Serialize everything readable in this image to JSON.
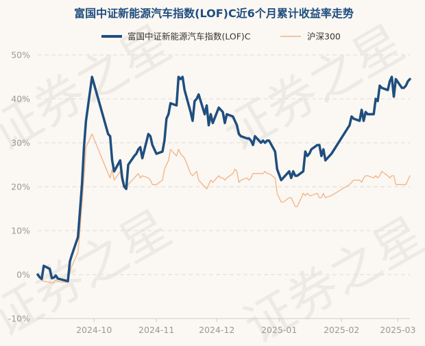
{
  "chart_data": {
    "type": "line",
    "title": "富国中证新能源汽车指数(LOF)C近6个月累计收益率走势",
    "watermark": "证券之星",
    "y_unit": "%",
    "ylim": [
      -10,
      50
    ],
    "yticks": [
      -10,
      0,
      10,
      20,
      30,
      40,
      50
    ],
    "ytick_labels": [
      "-10%",
      "0%",
      "10%",
      "20%",
      "30%",
      "40%",
      "50%"
    ],
    "x_range": [
      "2024-09-03",
      "2025-03-07"
    ],
    "xticks": [
      "2024-10-01",
      "2024-11-01",
      "2024-12-01",
      "2025-01-01",
      "2025-02-01",
      "2025-03-01"
    ],
    "xtick_labels": [
      "2024-10",
      "2024-11",
      "2024-12",
      "2025-01",
      "2025-02",
      "2025-03"
    ],
    "grid": true,
    "legend_position": "top-center",
    "colors": {
      "fund": "#1f4e7f",
      "index": "#f0b385",
      "title": "#1f4e7f",
      "axis_text": "#999999",
      "grid": "#dddddd"
    },
    "series": [
      {
        "name": "富国中证新能源汽车指数(LOF)C",
        "points": [
          [
            "2024-09-03",
            0.0
          ],
          [
            "2024-09-04",
            -0.6
          ],
          [
            "2024-09-05",
            -1.0
          ],
          [
            "2024-09-06",
            2.0
          ],
          [
            "2024-09-09",
            1.3
          ],
          [
            "2024-09-10",
            -0.8
          ],
          [
            "2024-09-11",
            -0.7
          ],
          [
            "2024-09-12",
            -0.2
          ],
          [
            "2024-09-13",
            -0.9
          ],
          [
            "2024-09-18",
            -1.5
          ],
          [
            "2024-09-19",
            3.0
          ],
          [
            "2024-09-20",
            4.5
          ],
          [
            "2024-09-23",
            8.5
          ],
          [
            "2024-09-24",
            14.5
          ],
          [
            "2024-09-25",
            20.5
          ],
          [
            "2024-09-26",
            29.0
          ],
          [
            "2024-09-27",
            35.0
          ],
          [
            "2024-09-30",
            45.0
          ],
          [
            "2024-10-08",
            32.0
          ],
          [
            "2024-10-09",
            31.5
          ],
          [
            "2024-10-10",
            26.0
          ],
          [
            "2024-10-11",
            23.5
          ],
          [
            "2024-10-14",
            26.0
          ],
          [
            "2024-10-15",
            22.0
          ],
          [
            "2024-10-16",
            20.0
          ],
          [
            "2024-10-17",
            19.5
          ],
          [
            "2024-10-18",
            25.0
          ],
          [
            "2024-10-21",
            27.0
          ],
          [
            "2024-10-22",
            27.5
          ],
          [
            "2024-10-23",
            28.5
          ],
          [
            "2024-10-24",
            29.0
          ],
          [
            "2024-10-25",
            26.5
          ],
          [
            "2024-10-28",
            32.0
          ],
          [
            "2024-10-29",
            31.5
          ],
          [
            "2024-10-30",
            29.5
          ],
          [
            "2024-10-31",
            28.5
          ],
          [
            "2024-11-01",
            27.5
          ],
          [
            "2024-11-04",
            28.0
          ],
          [
            "2024-11-05",
            30.5
          ],
          [
            "2024-11-06",
            35.5
          ],
          [
            "2024-11-07",
            36.5
          ],
          [
            "2024-11-08",
            39.0
          ],
          [
            "2024-11-11",
            38.5
          ],
          [
            "2024-11-12",
            45.0
          ],
          [
            "2024-11-13",
            44.5
          ],
          [
            "2024-11-14",
            45.0
          ],
          [
            "2024-11-15",
            42.0
          ],
          [
            "2024-11-18",
            37.0
          ],
          [
            "2024-11-19",
            35.0
          ],
          [
            "2024-11-20",
            39.5
          ],
          [
            "2024-11-21",
            40.0
          ],
          [
            "2024-11-22",
            41.0
          ],
          [
            "2024-11-25",
            36.5
          ],
          [
            "2024-11-26",
            38.5
          ],
          [
            "2024-11-27",
            34.0
          ],
          [
            "2024-11-28",
            36.5
          ],
          [
            "2024-11-29",
            34.5
          ],
          [
            "2024-12-02",
            38.0
          ],
          [
            "2024-12-03",
            37.5
          ],
          [
            "2024-12-04",
            37.0
          ],
          [
            "2024-12-05",
            34.5
          ],
          [
            "2024-12-06",
            36.5
          ],
          [
            "2024-12-09",
            36.0
          ],
          [
            "2024-12-10",
            35.0
          ],
          [
            "2024-12-11",
            34.0
          ],
          [
            "2024-12-12",
            32.0
          ],
          [
            "2024-12-13",
            31.5
          ],
          [
            "2024-12-16",
            31.0
          ],
          [
            "2024-12-17",
            31.0
          ],
          [
            "2024-12-18",
            30.5
          ],
          [
            "2024-12-19",
            29.5
          ],
          [
            "2024-12-20",
            31.5
          ],
          [
            "2024-12-23",
            30.0
          ],
          [
            "2024-12-24",
            30.5
          ],
          [
            "2024-12-25",
            30.0
          ],
          [
            "2024-12-26",
            30.5
          ],
          [
            "2024-12-27",
            30.5
          ],
          [
            "2024-12-30",
            28.0
          ],
          [
            "2024-12-31",
            24.0
          ],
          [
            "2025-01-02",
            21.5
          ],
          [
            "2025-01-03",
            22.0
          ],
          [
            "2025-01-06",
            23.5
          ],
          [
            "2025-01-07",
            22.0
          ],
          [
            "2025-01-08",
            23.5
          ],
          [
            "2025-01-09",
            22.5
          ],
          [
            "2025-01-10",
            22.5
          ],
          [
            "2025-01-13",
            23.5
          ],
          [
            "2025-01-14",
            28.0
          ],
          [
            "2025-01-15",
            27.0
          ],
          [
            "2025-01-16",
            27.5
          ],
          [
            "2025-01-17",
            28.5
          ],
          [
            "2025-01-20",
            29.5
          ],
          [
            "2025-01-21",
            29.5
          ],
          [
            "2025-01-22",
            27.0
          ],
          [
            "2025-01-23",
            28.5
          ],
          [
            "2025-01-24",
            26.0
          ],
          [
            "2025-01-27",
            27.5
          ],
          [
            "2025-02-05",
            34.0
          ],
          [
            "2025-02-06",
            36.0
          ],
          [
            "2025-02-07",
            35.5
          ],
          [
            "2025-02-10",
            35.0
          ],
          [
            "2025-02-11",
            37.5
          ],
          [
            "2025-02-12",
            35.0
          ],
          [
            "2025-02-13",
            37.0
          ],
          [
            "2025-02-14",
            36.5
          ],
          [
            "2025-02-17",
            36.5
          ],
          [
            "2025-02-18",
            40.0
          ],
          [
            "2025-02-19",
            39.5
          ],
          [
            "2025-02-20",
            43.0
          ],
          [
            "2025-02-21",
            42.5
          ],
          [
            "2025-02-24",
            42.0
          ],
          [
            "2025-02-25",
            44.0
          ],
          [
            "2025-02-26",
            45.0
          ],
          [
            "2025-02-27",
            40.5
          ],
          [
            "2025-02-28",
            44.5
          ],
          [
            "2025-03-03",
            42.5
          ],
          [
            "2025-03-04",
            42.5
          ],
          [
            "2025-03-05",
            43.0
          ],
          [
            "2025-03-06",
            44.0
          ],
          [
            "2025-03-07",
            44.5
          ]
        ]
      },
      {
        "name": "沪深300",
        "points": [
          [
            "2024-09-03",
            0.0
          ],
          [
            "2024-09-04",
            -0.8
          ],
          [
            "2024-09-05",
            -1.3
          ],
          [
            "2024-09-06",
            -1.5
          ],
          [
            "2024-09-09",
            -1.8
          ],
          [
            "2024-09-10",
            -1.9
          ],
          [
            "2024-09-11",
            -1.8
          ],
          [
            "2024-09-12",
            -1.2
          ],
          [
            "2024-09-13",
            -1.6
          ],
          [
            "2024-09-18",
            -1.8
          ],
          [
            "2024-09-19",
            0.5
          ],
          [
            "2024-09-20",
            2.0
          ],
          [
            "2024-09-23",
            5.0
          ],
          [
            "2024-09-24",
            10.0
          ],
          [
            "2024-09-25",
            16.0
          ],
          [
            "2024-09-26",
            22.0
          ],
          [
            "2024-09-27",
            29.0
          ],
          [
            "2024-09-30",
            32.0
          ],
          [
            "2024-10-08",
            23.0
          ],
          [
            "2024-10-09",
            22.0
          ],
          [
            "2024-10-10",
            24.0
          ],
          [
            "2024-10-11",
            21.5
          ],
          [
            "2024-10-14",
            23.5
          ],
          [
            "2024-10-15",
            21.0
          ],
          [
            "2024-10-16",
            20.5
          ],
          [
            "2024-10-17",
            19.5
          ],
          [
            "2024-10-18",
            20.5
          ],
          [
            "2024-10-21",
            22.0
          ],
          [
            "2024-10-22",
            22.5
          ],
          [
            "2024-10-23",
            23.0
          ],
          [
            "2024-10-24",
            22.0
          ],
          [
            "2024-10-25",
            22.5
          ],
          [
            "2024-10-28",
            22.0
          ],
          [
            "2024-10-29",
            21.5
          ],
          [
            "2024-10-30",
            20.5
          ],
          [
            "2024-10-31",
            20.5
          ],
          [
            "2024-11-01",
            20.5
          ],
          [
            "2024-11-04",
            21.5
          ],
          [
            "2024-11-05",
            24.0
          ],
          [
            "2024-11-06",
            25.0
          ],
          [
            "2024-11-07",
            26.0
          ],
          [
            "2024-11-08",
            28.5
          ],
          [
            "2024-11-11",
            27.0
          ],
          [
            "2024-11-12",
            28.5
          ],
          [
            "2024-11-13",
            27.5
          ],
          [
            "2024-11-14",
            27.0
          ],
          [
            "2024-11-15",
            26.5
          ],
          [
            "2024-11-18",
            23.0
          ],
          [
            "2024-11-19",
            22.5
          ],
          [
            "2024-11-20",
            23.0
          ],
          [
            "2024-11-21",
            23.5
          ],
          [
            "2024-11-22",
            21.5
          ],
          [
            "2024-11-25",
            20.0
          ],
          [
            "2024-11-26",
            19.5
          ],
          [
            "2024-11-27",
            20.5
          ],
          [
            "2024-11-28",
            21.5
          ],
          [
            "2024-11-29",
            21.0
          ],
          [
            "2024-12-02",
            22.5
          ],
          [
            "2024-12-03",
            22.0
          ],
          [
            "2024-12-04",
            22.0
          ],
          [
            "2024-12-05",
            21.5
          ],
          [
            "2024-12-06",
            22.0
          ],
          [
            "2024-12-09",
            23.0
          ],
          [
            "2024-12-10",
            24.0
          ],
          [
            "2024-12-11",
            23.5
          ],
          [
            "2024-12-12",
            21.0
          ],
          [
            "2024-12-13",
            21.5
          ],
          [
            "2024-12-16",
            22.0
          ],
          [
            "2024-12-17",
            21.5
          ],
          [
            "2024-12-18",
            22.0
          ],
          [
            "2024-12-19",
            23.0
          ],
          [
            "2024-12-20",
            23.0
          ],
          [
            "2024-12-23",
            23.0
          ],
          [
            "2024-12-24",
            23.0
          ],
          [
            "2024-12-25",
            23.5
          ],
          [
            "2024-12-26",
            23.0
          ],
          [
            "2024-12-27",
            23.0
          ],
          [
            "2024-12-30",
            22.0
          ],
          [
            "2024-12-31",
            18.5
          ],
          [
            "2025-01-02",
            16.5
          ],
          [
            "2025-01-03",
            16.5
          ],
          [
            "2025-01-06",
            17.5
          ],
          [
            "2025-01-07",
            17.5
          ],
          [
            "2025-01-08",
            16.5
          ],
          [
            "2025-01-09",
            15.5
          ],
          [
            "2025-01-10",
            15.5
          ],
          [
            "2025-01-13",
            18.5
          ],
          [
            "2025-01-14",
            18.0
          ],
          [
            "2025-01-15",
            18.5
          ],
          [
            "2025-01-16",
            18.0
          ],
          [
            "2025-01-17",
            18.0
          ],
          [
            "2025-01-20",
            18.5
          ],
          [
            "2025-01-21",
            17.5
          ],
          [
            "2025-01-22",
            17.5
          ],
          [
            "2025-01-23",
            18.5
          ],
          [
            "2025-01-24",
            17.5
          ],
          [
            "2025-01-27",
            18.0
          ],
          [
            "2025-02-05",
            20.5
          ],
          [
            "2025-02-06",
            21.0
          ],
          [
            "2025-02-07",
            21.5
          ],
          [
            "2025-02-10",
            21.5
          ],
          [
            "2025-02-11",
            21.0
          ],
          [
            "2025-02-12",
            22.0
          ],
          [
            "2025-02-13",
            22.5
          ],
          [
            "2025-02-14",
            22.5
          ],
          [
            "2025-02-17",
            22.0
          ],
          [
            "2025-02-18",
            22.5
          ],
          [
            "2025-02-19",
            22.0
          ],
          [
            "2025-02-20",
            22.5
          ],
          [
            "2025-02-21",
            23.5
          ],
          [
            "2025-02-24",
            22.5
          ],
          [
            "2025-02-25",
            22.0
          ],
          [
            "2025-02-26",
            22.5
          ],
          [
            "2025-02-27",
            22.5
          ],
          [
            "2025-02-28",
            20.5
          ],
          [
            "2025-03-03",
            20.5
          ],
          [
            "2025-03-04",
            20.5
          ],
          [
            "2025-03-05",
            20.5
          ],
          [
            "2025-03-06",
            21.5
          ],
          [
            "2025-03-07",
            22.5
          ]
        ]
      }
    ]
  }
}
